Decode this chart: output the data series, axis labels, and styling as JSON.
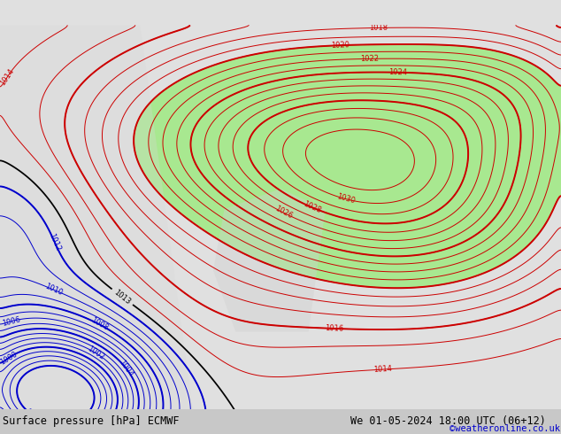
{
  "title_left": "Surface pressure [hPa] ECMWF",
  "title_right": "We 01-05-2024 18:00 UTC (06+12)",
  "watermark": "©weatheronline.co.uk",
  "background_color": "#e0e0e0",
  "green_fill_color": "#a8e890",
  "fig_width": 6.34,
  "fig_height": 4.9,
  "dpi": 100,
  "bottom_bar_color": "#c8c8c8",
  "bottom_text_color": "#000000",
  "watermark_color": "#0000cc",
  "red_contour_color": "#cc0000",
  "blue_contour_color": "#0000cc",
  "black_contour_color": "#000000",
  "contour_linewidth": 0.7,
  "label_fontsize": 6.0
}
